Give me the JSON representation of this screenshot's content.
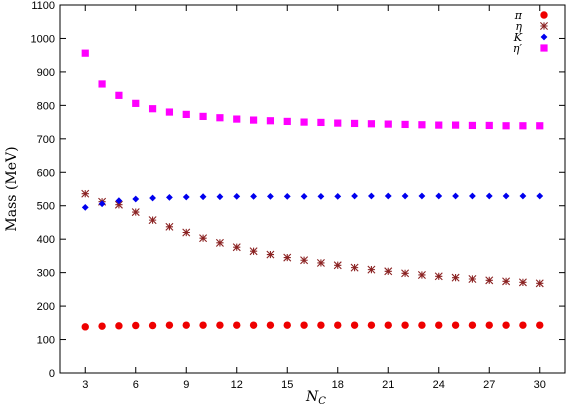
{
  "chart_data": {
    "type": "scatter",
    "xlabel": "N_C",
    "xlabel_main": "N",
    "xlabel_sub": "C",
    "ylabel": "Mass (MeV)",
    "xlim": [
      1.5,
      31.5
    ],
    "ylim": [
      0,
      1100
    ],
    "xticks": [
      3,
      6,
      9,
      12,
      15,
      18,
      21,
      24,
      27,
      30
    ],
    "yticks": [
      0,
      100,
      200,
      300,
      400,
      500,
      600,
      700,
      800,
      900,
      1000,
      1100
    ],
    "x": [
      3,
      4,
      5,
      6,
      7,
      8,
      9,
      10,
      11,
      12,
      13,
      14,
      15,
      16,
      17,
      18,
      19,
      20,
      21,
      22,
      23,
      24,
      25,
      26,
      27,
      28,
      29,
      30
    ],
    "grid": false,
    "legend_position": "top-right",
    "series": [
      {
        "name": "π",
        "marker": "circle",
        "color": "#ee0000",
        "values": [
          138,
          140,
          141,
          142,
          142,
          143,
          143,
          143,
          143,
          143,
          143,
          143,
          143,
          143,
          143,
          143,
          143,
          143,
          143,
          143,
          143,
          143,
          143,
          143,
          143,
          143,
          143,
          143
        ]
      },
      {
        "name": "η",
        "marker": "star",
        "color": "#8b2323",
        "values": [
          536,
          512,
          503,
          481,
          457,
          437,
          420,
          403,
          389,
          376,
          364,
          354,
          345,
          337,
          329,
          322,
          315,
          309,
          304,
          298,
          293,
          289,
          285,
          281,
          277,
          274,
          271,
          268
        ]
      },
      {
        "name": "K",
        "marker": "diamond",
        "color": "#0000ee",
        "values": [
          495,
          506,
          515,
          520,
          523,
          525,
          526,
          527,
          527,
          528,
          528,
          528,
          528,
          528,
          528,
          528,
          529,
          529,
          529,
          529,
          529,
          529,
          529,
          529,
          529,
          529,
          529,
          529
        ]
      },
      {
        "name": "η′",
        "marker": "square",
        "color": "#ff00ff",
        "values": [
          956,
          864,
          830,
          806,
          790,
          780,
          773,
          767,
          763,
          759,
          756,
          754,
          752,
          750,
          749,
          747,
          746,
          745,
          744,
          743,
          742,
          741,
          741,
          740,
          740,
          739,
          739,
          739
        ]
      }
    ]
  }
}
